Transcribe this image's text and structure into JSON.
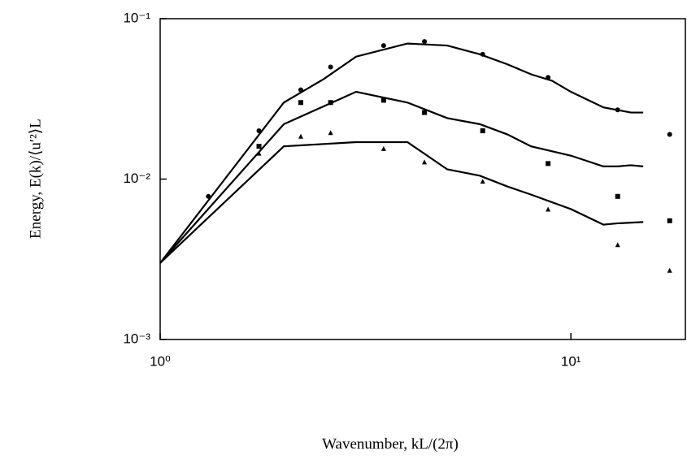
{
  "chart_data": {
    "type": "line",
    "xlabel": "Wavenumber, kL/(2π)",
    "ylabel": "Energy, E(k)/⟨u′²⟩L",
    "xlog": true,
    "ylog": true,
    "xlim": [
      1,
      19
    ],
    "ylim": [
      0.001,
      0.1
    ],
    "xticks": [
      {
        "value": 1,
        "label": "10⁰"
      },
      {
        "value": 10,
        "label": "10¹"
      }
    ],
    "yticks": [
      {
        "value": 0.001,
        "label": "10⁻³"
      },
      {
        "value": 0.01,
        "label": "10⁻²"
      },
      {
        "value": 0.1,
        "label": "10⁻¹"
      }
    ],
    "color": "#000000",
    "series": [
      {
        "style": "line",
        "x": [
          1,
          2,
          2.5,
          3,
          4,
          5,
          6,
          7,
          8,
          9,
          10,
          12,
          14,
          15
        ],
        "values": [
          0.003,
          0.03,
          0.042,
          0.058,
          0.07,
          0.068,
          0.06,
          0.052,
          0.045,
          0.041,
          0.035,
          0.028,
          0.026,
          0.026
        ]
      },
      {
        "style": "line",
        "x": [
          1,
          2,
          3,
          4,
          5,
          6,
          7,
          8,
          10,
          12,
          13,
          14,
          15
        ],
        "values": [
          0.003,
          0.022,
          0.035,
          0.03,
          0.024,
          0.022,
          0.019,
          0.016,
          0.014,
          0.012,
          0.012,
          0.0122,
          0.012
        ]
      },
      {
        "style": "line",
        "x": [
          1,
          2,
          3,
          4,
          5,
          6,
          7,
          8,
          10,
          12,
          13,
          15
        ],
        "values": [
          0.003,
          0.016,
          0.017,
          0.017,
          0.0115,
          0.0105,
          0.009,
          0.008,
          0.0065,
          0.0052,
          0.0053,
          0.0054
        ]
      },
      {
        "style": "marker",
        "marker": "circle",
        "x": [
          1.31,
          1.74,
          2.2,
          2.6,
          3.5,
          4.4,
          6.1,
          8.8,
          13,
          17.4
        ],
        "values": [
          0.0078,
          0.02,
          0.036,
          0.05,
          0.068,
          0.072,
          0.06,
          0.043,
          0.027,
          0.019
        ]
      },
      {
        "style": "marker",
        "marker": "square",
        "x": [
          1.74,
          2.2,
          2.6,
          3.5,
          4.4,
          6.1,
          8.8,
          13,
          17.4
        ],
        "values": [
          0.016,
          0.03,
          0.03,
          0.031,
          0.026,
          0.02,
          0.0125,
          0.0078,
          0.0055
        ]
      },
      {
        "style": "marker",
        "marker": "triangle",
        "x": [
          1.74,
          2.2,
          2.6,
          3.5,
          4.4,
          6.1,
          8.8,
          13,
          17.4
        ],
        "values": [
          0.0145,
          0.0185,
          0.0195,
          0.0155,
          0.0128,
          0.0097,
          0.0065,
          0.0039,
          0.0027
        ]
      }
    ]
  }
}
